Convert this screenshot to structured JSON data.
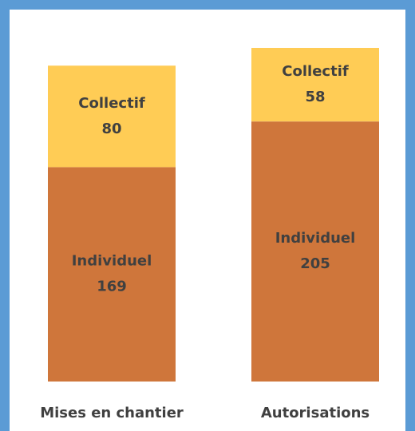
{
  "chart_data": {
    "type": "stacked_bar",
    "categories": [
      "Mises en chantier",
      "Autorisations"
    ],
    "series": [
      {
        "name": "Individuel",
        "color": "#cf763b",
        "values": [
          169,
          205
        ]
      },
      {
        "name": "Collectif",
        "color": "#ffcc55",
        "values": [
          80,
          58
        ]
      }
    ]
  }
}
